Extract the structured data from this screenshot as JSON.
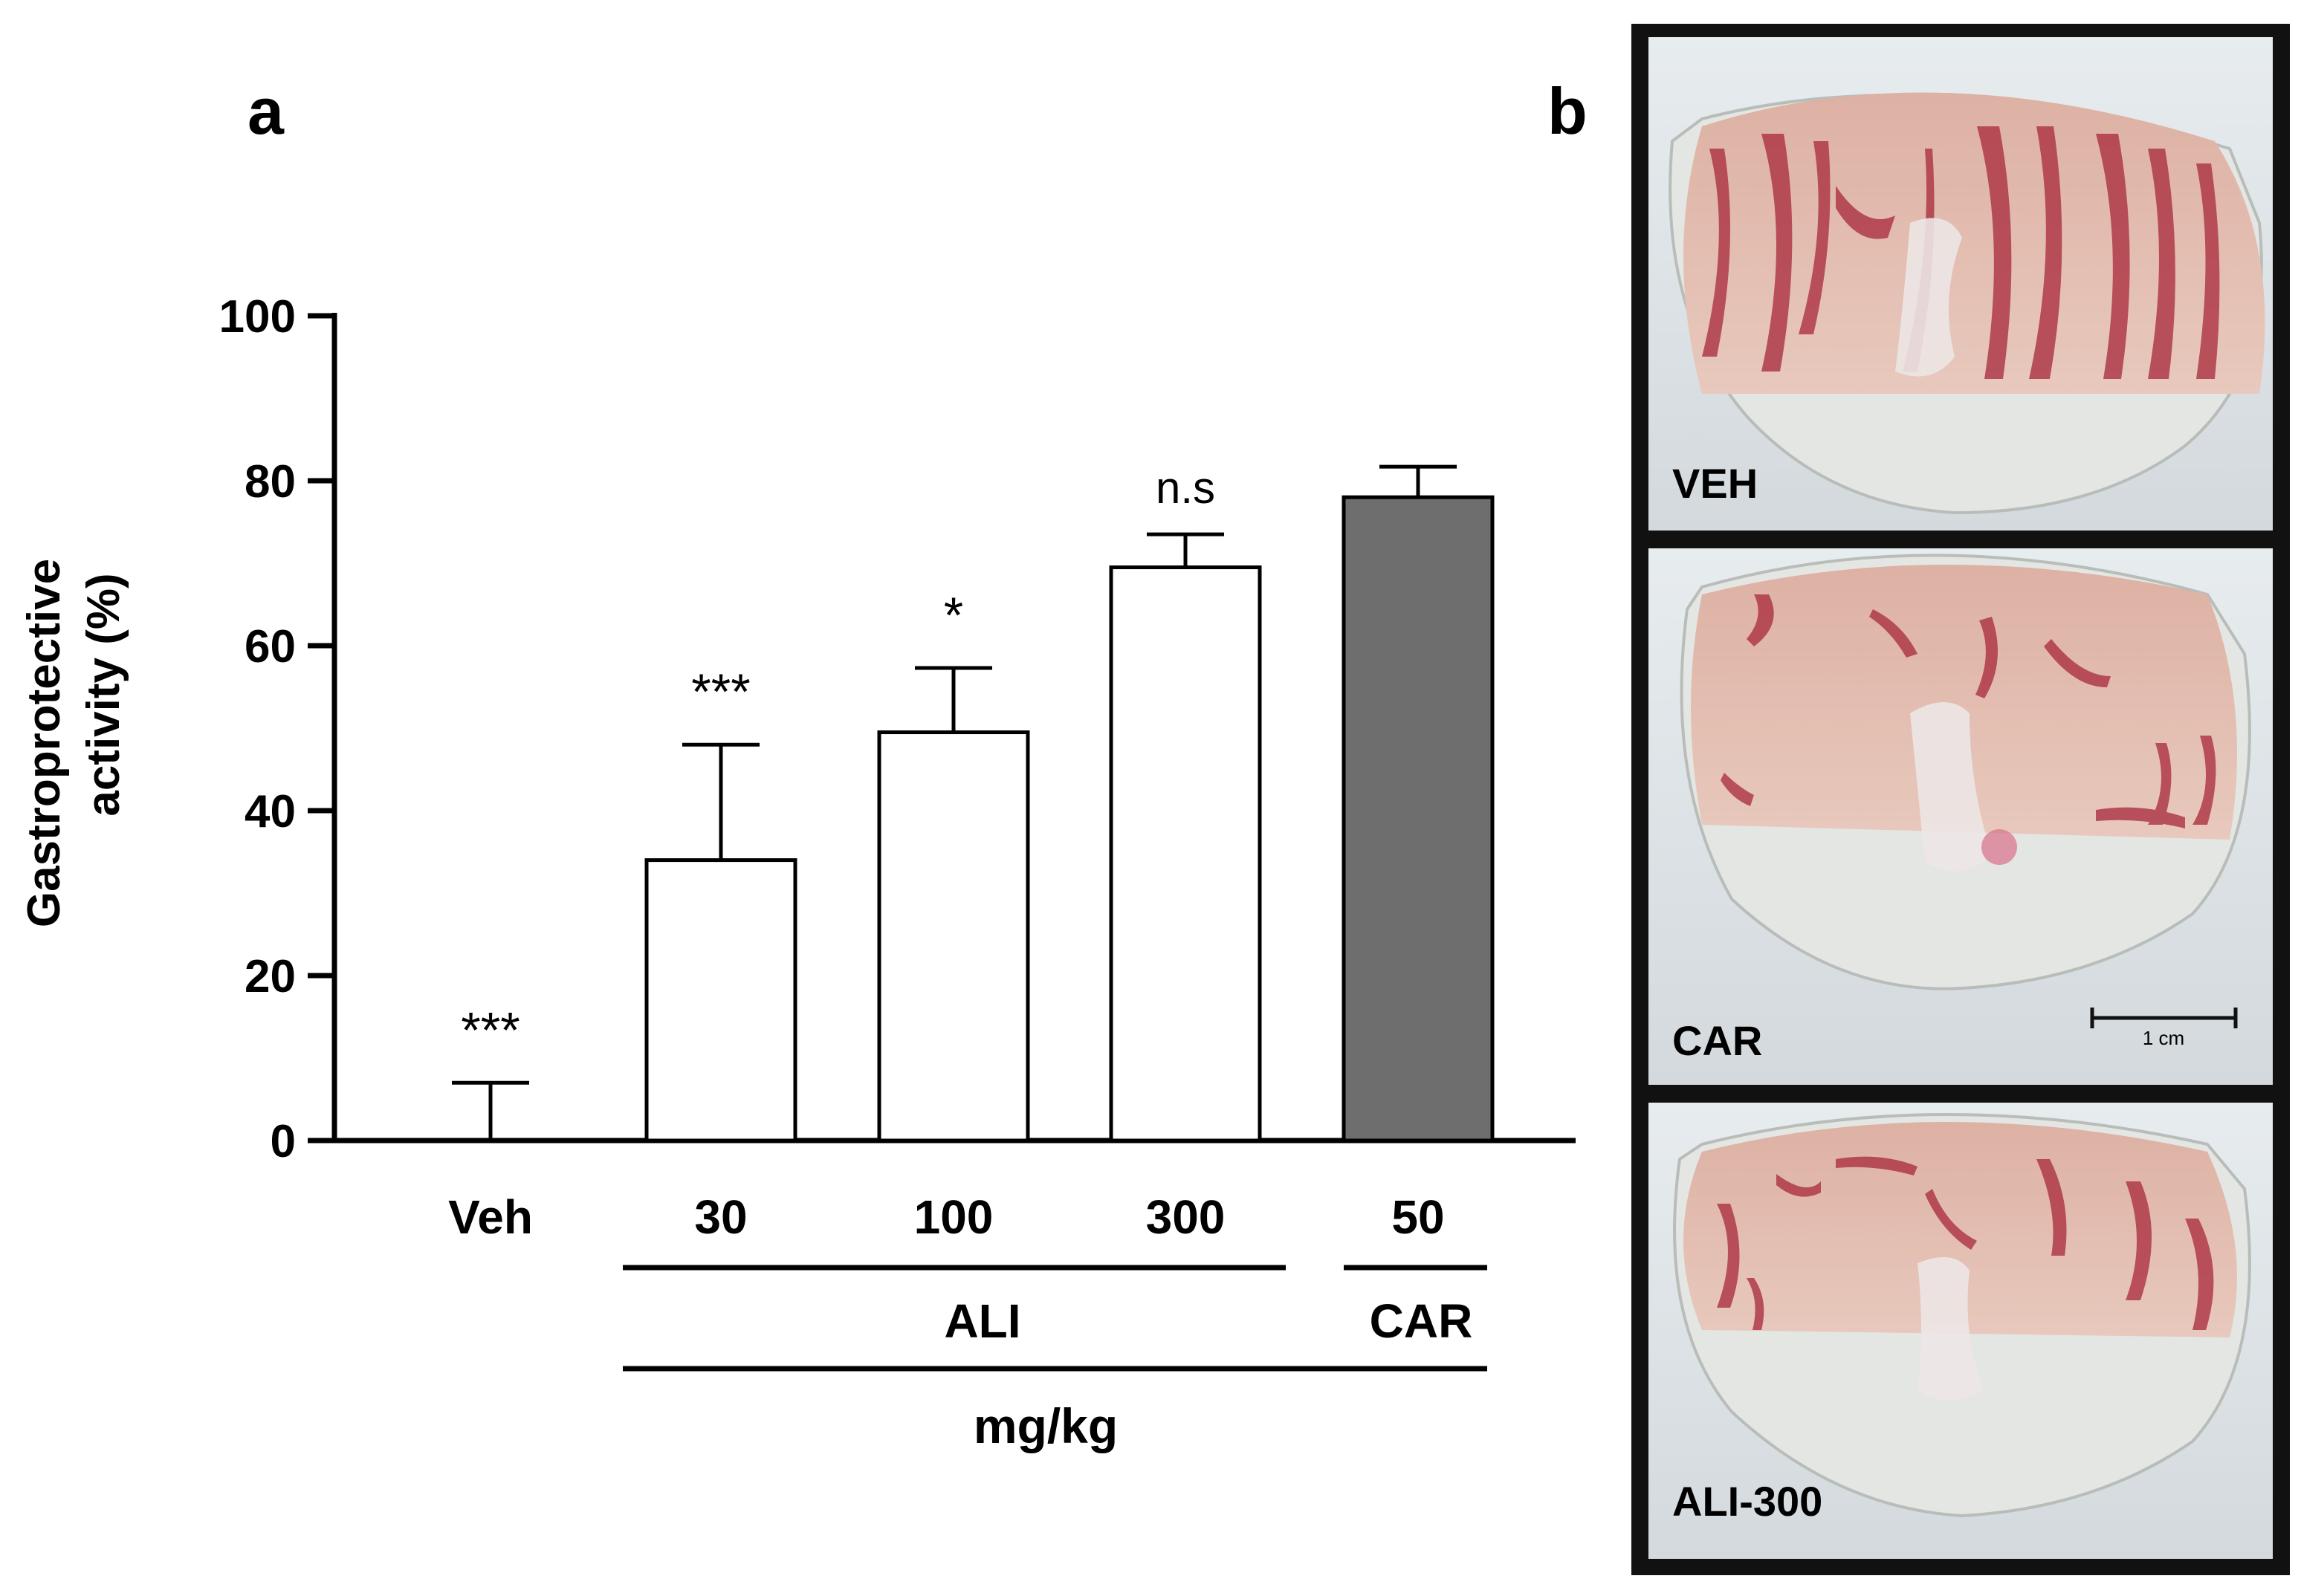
{
  "panels": {
    "a_label": "a",
    "b_label": "b"
  },
  "chart_data": {
    "type": "bar",
    "ylabel_line1": "Gastroprotective",
    "ylabel_line2": "activity (%)",
    "ylim": [
      0,
      100
    ],
    "yticks": [
      0,
      20,
      40,
      60,
      80,
      100
    ],
    "categories": [
      "Veh",
      "30",
      "100",
      "300",
      "50"
    ],
    "values": [
      0,
      34,
      49.5,
      69.5,
      78
    ],
    "errors": [
      7,
      14,
      7.8,
      4,
      3.7
    ],
    "significance": [
      "***",
      "***",
      "*",
      "n.s",
      ""
    ],
    "bar_colors": [
      "#ffffff",
      "#ffffff",
      "#ffffff",
      "#ffffff",
      "#6e6e6e"
    ],
    "group_labels": {
      "ali": "ALI",
      "car": "CAR",
      "unit": "mg/kg"
    }
  },
  "photos": [
    {
      "label": "VEH"
    },
    {
      "label": "CAR",
      "scale_bar": "1 cm"
    },
    {
      "label": "ALI-300"
    }
  ]
}
